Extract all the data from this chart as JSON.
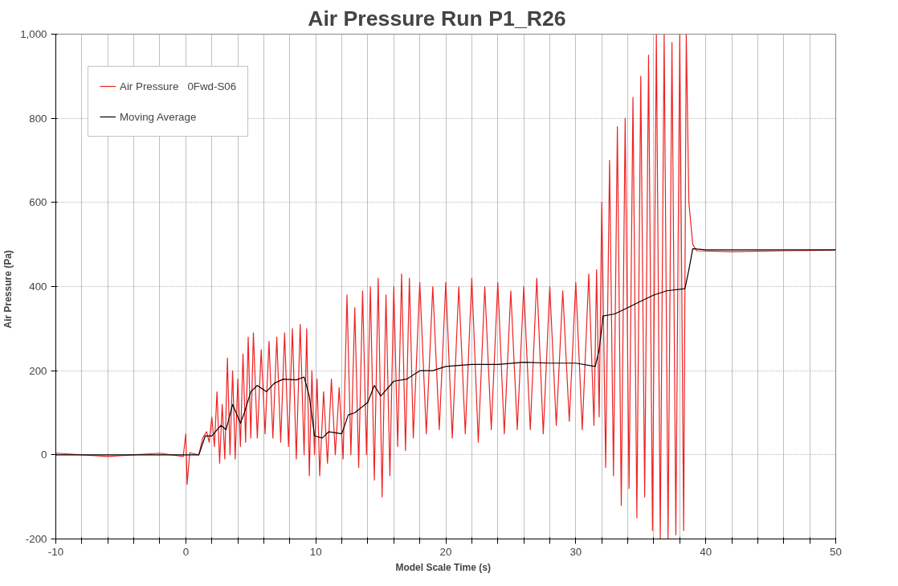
{
  "chart_data": {
    "type": "line",
    "title": "Air Pressure    Run P1_R26",
    "xlabel": "Model Scale Time   (s)",
    "ylabel": "Air Pressure   (Pa)",
    "xlim": [
      -10,
      50
    ],
    "ylim": [
      -200,
      1000
    ],
    "xticks": [
      -10,
      {
        "value": -8,
        "label": null
      },
      {
        "value": -6,
        "label": null
      },
      {
        "value": -4,
        "label": null
      },
      {
        "value": -2,
        "label": null
      },
      0,
      {
        "value": 2,
        "label": null
      },
      {
        "value": 4,
        "label": null
      },
      {
        "value": 6,
        "label": null
      },
      {
        "value": 8,
        "label": null
      },
      10,
      {
        "value": 12,
        "label": null
      },
      {
        "value": 14,
        "label": null
      },
      {
        "value": 16,
        "label": null
      },
      {
        "value": 18,
        "label": null
      },
      20,
      {
        "value": 22,
        "label": null
      },
      {
        "value": 24,
        "label": null
      },
      {
        "value": 26,
        "label": null
      },
      {
        "value": 28,
        "label": null
      },
      30,
      {
        "value": 32,
        "label": null
      },
      {
        "value": 34,
        "label": null
      },
      {
        "value": 36,
        "label": null
      },
      {
        "value": 38,
        "label": null
      },
      40,
      {
        "value": 42,
        "label": null
      },
      {
        "value": 44,
        "label": null
      },
      {
        "value": 46,
        "label": null
      },
      {
        "value": 48,
        "label": null
      },
      50
    ],
    "yticks": [
      -200,
      0,
      200,
      400,
      600,
      800,
      {
        "value": 1000,
        "label": "1,000"
      }
    ],
    "grid": true,
    "legend": "top left",
    "line_style": "solid",
    "series": [
      {
        "name": "Air Pressure   0Fwd-S06",
        "color": "#ee2222",
        "x": [
          -10,
          -6,
          -2,
          -0.2,
          0,
          0.1,
          0.3,
          1,
          1.3,
          1.6,
          1.8,
          2.0,
          2.2,
          2.4,
          2.6,
          2.8,
          3.0,
          3.2,
          3.4,
          3.6,
          3.8,
          4.0,
          4.2,
          4.4,
          4.6,
          4.8,
          5.0,
          5.2,
          5.5,
          5.8,
          6.1,
          6.4,
          6.7,
          7.0,
          7.3,
          7.6,
          7.9,
          8.2,
          8.5,
          8.8,
          9.1,
          9.3,
          9.5,
          9.7,
          9.9,
          10.1,
          10.3,
          10.6,
          10.9,
          11.2,
          11.5,
          11.8,
          12.1,
          12.4,
          12.7,
          13.0,
          13.3,
          13.6,
          13.9,
          14.2,
          14.5,
          14.8,
          15.1,
          15.4,
          15.7,
          16.0,
          16.3,
          16.6,
          16.9,
          17.2,
          17.5,
          18.0,
          18.5,
          19.0,
          19.5,
          20.0,
          20.5,
          21.0,
          21.5,
          22.0,
          22.5,
          23.0,
          23.5,
          24.0,
          24.5,
          25.0,
          25.5,
          26.0,
          26.5,
          27.0,
          27.5,
          28.0,
          28.5,
          29.0,
          29.5,
          30.0,
          30.5,
          31.0,
          31.4,
          31.6,
          31.8,
          32.0,
          32.3,
          32.6,
          32.9,
          33.2,
          33.5,
          33.8,
          34.1,
          34.4,
          34.7,
          35.0,
          35.3,
          35.6,
          35.9,
          36.2,
          36.5,
          36.8,
          37.1,
          37.4,
          37.7,
          38.0,
          38.3,
          38.5,
          38.7,
          39.0,
          39.3,
          42,
          46,
          50
        ],
        "values": [
          4,
          -4,
          4,
          -4,
          50,
          -70,
          5,
          0,
          40,
          55,
          30,
          90,
          20,
          150,
          -20,
          120,
          -10,
          230,
          0,
          200,
          -10,
          180,
          20,
          240,
          30,
          280,
          40,
          290,
          40,
          250,
          50,
          270,
          40,
          280,
          30,
          290,
          20,
          300,
          -10,
          310,
          0,
          300,
          -50,
          200,
          0,
          180,
          -50,
          150,
          -20,
          180,
          0,
          160,
          -10,
          380,
          0,
          350,
          -30,
          390,
          0,
          400,
          -60,
          420,
          -100,
          380,
          -50,
          400,
          20,
          430,
          10,
          420,
          40,
          410,
          50,
          400,
          60,
          410,
          40,
          400,
          50,
          420,
          30,
          400,
          60,
          410,
          50,
          390,
          60,
          400,
          60,
          420,
          50,
          400,
          70,
          390,
          80,
          410,
          60,
          430,
          70,
          440,
          90,
          600,
          -30,
          700,
          -50,
          780,
          -120,
          800,
          -80,
          850,
          -150,
          900,
          -100,
          950,
          -180,
          1000,
          -200,
          1000,
          -200,
          980,
          -190,
          1000,
          -180,
          1000,
          600,
          500,
          485,
          483,
          485,
          487
        ]
      },
      {
        "name": "Moving Average",
        "color": "#000000",
        "x": [
          -10,
          1,
          1.5,
          2,
          2.7,
          3.1,
          3.6,
          4.2,
          4.5,
          5.0,
          5.5,
          6.2,
          6.8,
          7.5,
          8.5,
          9.1,
          9.5,
          9.9,
          10.5,
          11,
          12,
          12.5,
          13,
          14,
          14.5,
          15,
          16,
          17,
          18,
          19,
          20,
          22,
          24,
          26,
          28,
          30,
          31.5,
          31.8,
          32.1,
          33,
          34,
          35,
          36,
          37,
          38.4,
          38.7,
          39,
          40,
          45,
          50
        ],
        "values": [
          0,
          0,
          45,
          45,
          70,
          60,
          120,
          75,
          100,
          150,
          165,
          150,
          170,
          180,
          178,
          185,
          140,
          45,
          40,
          55,
          50,
          95,
          100,
          125,
          165,
          140,
          175,
          180,
          200,
          200,
          210,
          215,
          215,
          220,
          218,
          218,
          210,
          250,
          330,
          335,
          350,
          365,
          380,
          390,
          395,
          440,
          490,
          487,
          487,
          487
        ]
      }
    ]
  }
}
